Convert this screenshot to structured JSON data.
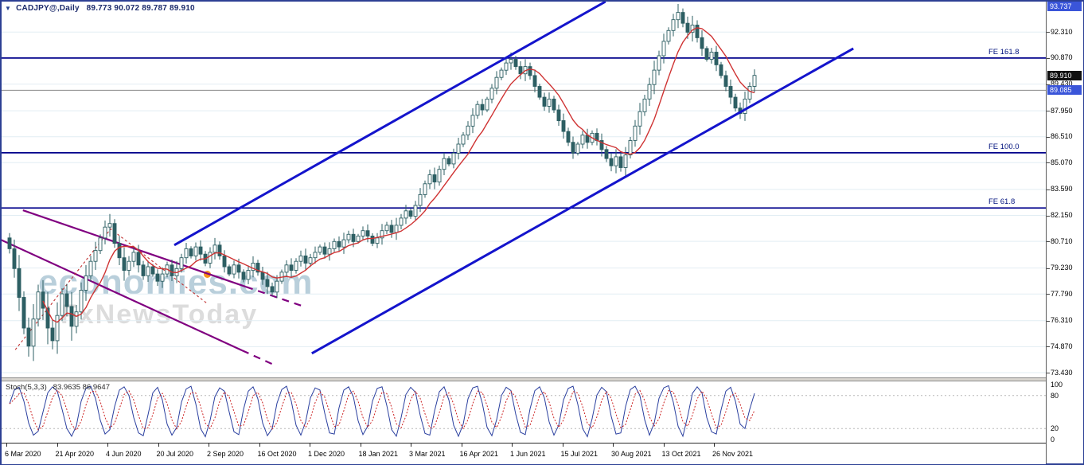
{
  "window": {
    "symbol": "CADJPY@,Daily",
    "ohlc": "89.773 90.072 89.787 89.910",
    "menu_arrow_icon": "chart-menu-arrow"
  },
  "watermark": {
    "line1": "economies.com",
    "line2": "FxNewsToday"
  },
  "price_axis": {
    "ticks": [
      92.31,
      90.87,
      89.43,
      87.95,
      86.51,
      85.07,
      83.59,
      82.15,
      80.71,
      79.23,
      77.79,
      76.31,
      74.87,
      73.43
    ],
    "special": [
      {
        "value": 93.737,
        "style": "blue"
      },
      {
        "value": 89.91,
        "style": "black"
      },
      {
        "value": 89.085,
        "style": "blue"
      }
    ]
  },
  "indicator": {
    "name": "Stoch(5,3,3)",
    "values": "83.9635 86.9647",
    "axis": [
      100,
      80,
      20,
      0
    ],
    "levels": [
      80,
      20
    ]
  },
  "chart_data": {
    "type": "candlestick",
    "title": "CADJPY@ Daily",
    "price_range": [
      73.43,
      93.737
    ],
    "x_labels": [
      "6 Mar 2020",
      "21 Apr 2020",
      "4 Jun 2020",
      "20 Jul 2020",
      "2 Sep 2020",
      "16 Oct 2020",
      "1 Dec 2020",
      "18 Jan 2021",
      "3 Mar 2021",
      "16 Apr 2021",
      "1 Jun 2021",
      "15 Jul 2021",
      "30 Aug 2021",
      "13 Oct 2021",
      "26 Nov 2021"
    ],
    "closes": [
      80.3,
      79.2,
      77.6,
      75.9,
      74.9,
      76.4,
      77.9,
      77.0,
      75.9,
      75.2,
      76.6,
      77.8,
      77.1,
      76.0,
      76.8,
      78.0,
      78.8,
      79.6,
      80.2,
      80.9,
      81.5,
      81.7,
      80.6,
      79.8,
      79.1,
      79.6,
      80.1,
      79.4,
      78.8,
      79.3,
      78.9,
      78.5,
      78.9,
      79.4,
      78.8,
      79.2,
      79.8,
      80.3,
      79.9,
      80.4,
      80.0,
      79.5,
      80.1,
      80.5,
      79.9,
      79.3,
      78.9,
      79.4,
      79.0,
      78.6,
      79.1,
      79.5,
      79.0,
      78.6,
      78.2,
      77.9,
      78.5,
      79.0,
      79.4,
      79.1,
      79.6,
      79.9,
      79.5,
      79.8,
      80.1,
      80.4,
      80.0,
      80.3,
      80.7,
      80.4,
      80.8,
      81.1,
      80.7,
      81.0,
      81.3,
      81.0,
      80.6,
      80.9,
      81.3,
      81.6,
      81.2,
      81.6,
      82.0,
      82.4,
      82.1,
      82.7,
      83.3,
      83.9,
      84.4,
      84.0,
      84.7,
      85.3,
      85.0,
      85.6,
      86.1,
      86.6,
      87.1,
      87.7,
      88.3,
      88.0,
      88.6,
      89.2,
      89.8,
      90.2,
      90.6,
      90.8,
      90.4,
      90.0,
      90.4,
      89.9,
      89.3,
      88.7,
      88.2,
      88.6,
      88.0,
      87.4,
      86.8,
      86.2,
      85.6,
      86.1,
      86.6,
      86.2,
      86.7,
      86.3,
      85.8,
      85.3,
      84.9,
      85.4,
      84.8,
      85.5,
      86.3,
      87.1,
      87.9,
      88.6,
      89.4,
      90.2,
      91.0,
      91.8,
      92.4,
      93.0,
      93.4,
      92.8,
      92.3,
      92.7,
      92.0,
      91.4,
      90.8,
      91.2,
      90.5,
      89.9,
      89.3,
      88.7,
      88.1,
      87.8,
      88.6,
      89.3,
      89.91
    ],
    "first_open": 80.9,
    "ma_period": 8,
    "current_ask": 89.085,
    "current_bid": 89.91,
    "fib_levels": [
      {
        "label": "FE 161.8",
        "price": 90.87
      },
      {
        "label": "FE 100.0",
        "price": 85.62
      },
      {
        "label": "FE 61.8",
        "price": 82.56
      }
    ],
    "blue_channel": [
      {
        "name": "ascending-channel-upper",
        "pts": [
          [
            34.5,
            80.5
          ],
          [
            124.8,
            94.0
          ]
        ]
      },
      {
        "name": "ascending-channel-lower",
        "pts": [
          [
            63.3,
            74.5
          ],
          [
            176.7,
            91.4
          ]
        ]
      }
    ],
    "purple_channel": [
      {
        "name": "descending-channel-upper",
        "solid": [
          [
            2.8,
            82.43
          ],
          [
            49.5,
            78.19
          ]
        ],
        "dash": [
          [
            49.5,
            78.19
          ],
          [
            61.7,
            77.09
          ]
        ]
      },
      {
        "name": "descending-channel-lower",
        "solid": [
          [
            -2.2,
            80.84
          ],
          [
            48.7,
            74.66
          ]
        ],
        "dash": [
          [
            48.7,
            74.66
          ],
          [
            55.3,
            73.87
          ]
        ]
      }
    ],
    "red_guide": [
      [
        1.2,
        74.7
      ],
      [
        21.2,
        81.4
      ],
      [
        41.2,
        77.3
      ]
    ],
    "stoch": [
      65,
      90,
      95,
      70,
      30,
      8,
      15,
      50,
      85,
      96,
      88,
      55,
      20,
      6,
      25,
      70,
      93,
      97,
      75,
      35,
      10,
      18,
      60,
      90,
      96,
      80,
      40,
      12,
      7,
      45,
      85,
      95,
      72,
      28,
      8,
      22,
      68,
      92,
      97,
      65,
      20,
      5,
      35,
      78,
      94,
      88,
      50,
      14,
      9,
      55,
      88,
      96,
      74,
      30,
      7,
      20,
      66,
      91,
      97,
      70,
      26,
      8,
      32,
      76,
      94,
      90,
      48,
      12,
      10,
      58,
      90,
      96,
      78,
      34,
      9,
      24,
      70,
      93,
      96,
      62,
      18,
      6,
      40,
      82,
      95,
      86,
      44,
      11,
      8,
      52,
      87,
      96,
      72,
      26,
      6,
      28,
      74,
      94,
      97,
      66,
      22,
      7,
      36,
      80,
      95,
      89,
      46,
      13,
      9,
      56,
      89,
      96,
      76,
      32,
      8,
      26,
      72,
      93,
      97,
      64,
      20,
      5,
      38,
      81,
      95,
      87,
      42,
      10,
      12,
      60,
      91,
      97,
      80,
      36,
      8,
      30,
      75,
      94,
      98,
      68,
      24,
      6,
      42,
      84,
      96,
      85,
      40,
      14,
      10,
      54,
      88,
      95,
      70,
      28,
      20,
      55,
      84
    ]
  },
  "colors": {
    "grid": "#e2edf3",
    "candle_stroke": "#2d5f63",
    "bear_fill": "#2d5f63",
    "bull_fill": "#ffffff",
    "ma": "#cf3333",
    "blue_channel": "#1414cc",
    "purple": "#800080",
    "fib": "#00008b",
    "red_guide": "#c03030",
    "ask_line": "#8a8a8a",
    "stoch_main": "#2a3f9f",
    "stoch_signal": "#cc2222",
    "box_blue": "#3a55d9",
    "box_black": "#101010"
  }
}
